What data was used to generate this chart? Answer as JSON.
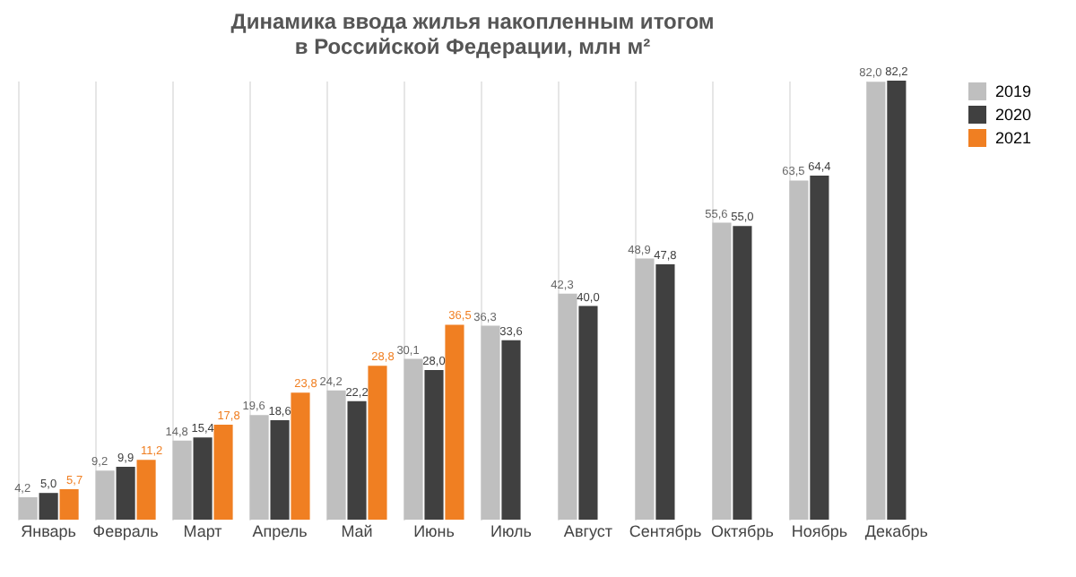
{
  "chart_data": {
    "type": "bar",
    "title": [
      "Динамика ввода жилья накопленным итогом",
      "в Российской Федерации, млн м²"
    ],
    "categories": [
      "Январь",
      "Февраль",
      "Март",
      "Апрель",
      "Май",
      "Июнь",
      "Июль",
      "Август",
      "Сентябрь",
      "Октябрь",
      "Ноябрь",
      "Декабрь"
    ],
    "series": [
      {
        "name": "2019",
        "color": "#bfbfbf",
        "values": [
          4.2,
          9.2,
          14.8,
          19.6,
          24.2,
          30.1,
          36.3,
          42.3,
          48.9,
          55.6,
          63.5,
          82.0
        ],
        "value_labels": [
          "4,2",
          "9,2",
          "14,8",
          "19,6",
          "24,2",
          "30,1",
          "36,3",
          "42,3",
          "48,9",
          "55,6",
          "63,5",
          "82,0"
        ]
      },
      {
        "name": "2020",
        "color": "#404040",
        "values": [
          5.0,
          9.9,
          15.4,
          18.6,
          22.2,
          28.0,
          33.6,
          40.0,
          47.8,
          55.0,
          64.4,
          82.2
        ],
        "value_labels": [
          "5,0",
          "9,9",
          "15,4",
          "18,6",
          "22,2",
          "28,0",
          "33,6",
          "40,0",
          "47,8",
          "55,0",
          "64,4",
          "82,2"
        ]
      },
      {
        "name": "2021",
        "color": "#f07f22",
        "values": [
          5.7,
          11.2,
          17.8,
          23.8,
          28.8,
          36.5,
          null,
          null,
          null,
          null,
          null,
          null
        ],
        "value_labels": [
          "5,7",
          "11,2",
          "17,8",
          "23,8",
          "28,8",
          "36,5",
          null,
          null,
          null,
          null,
          null,
          null
        ]
      }
    ],
    "grid": "x",
    "legend": "right",
    "tick_labels": "x"
  }
}
